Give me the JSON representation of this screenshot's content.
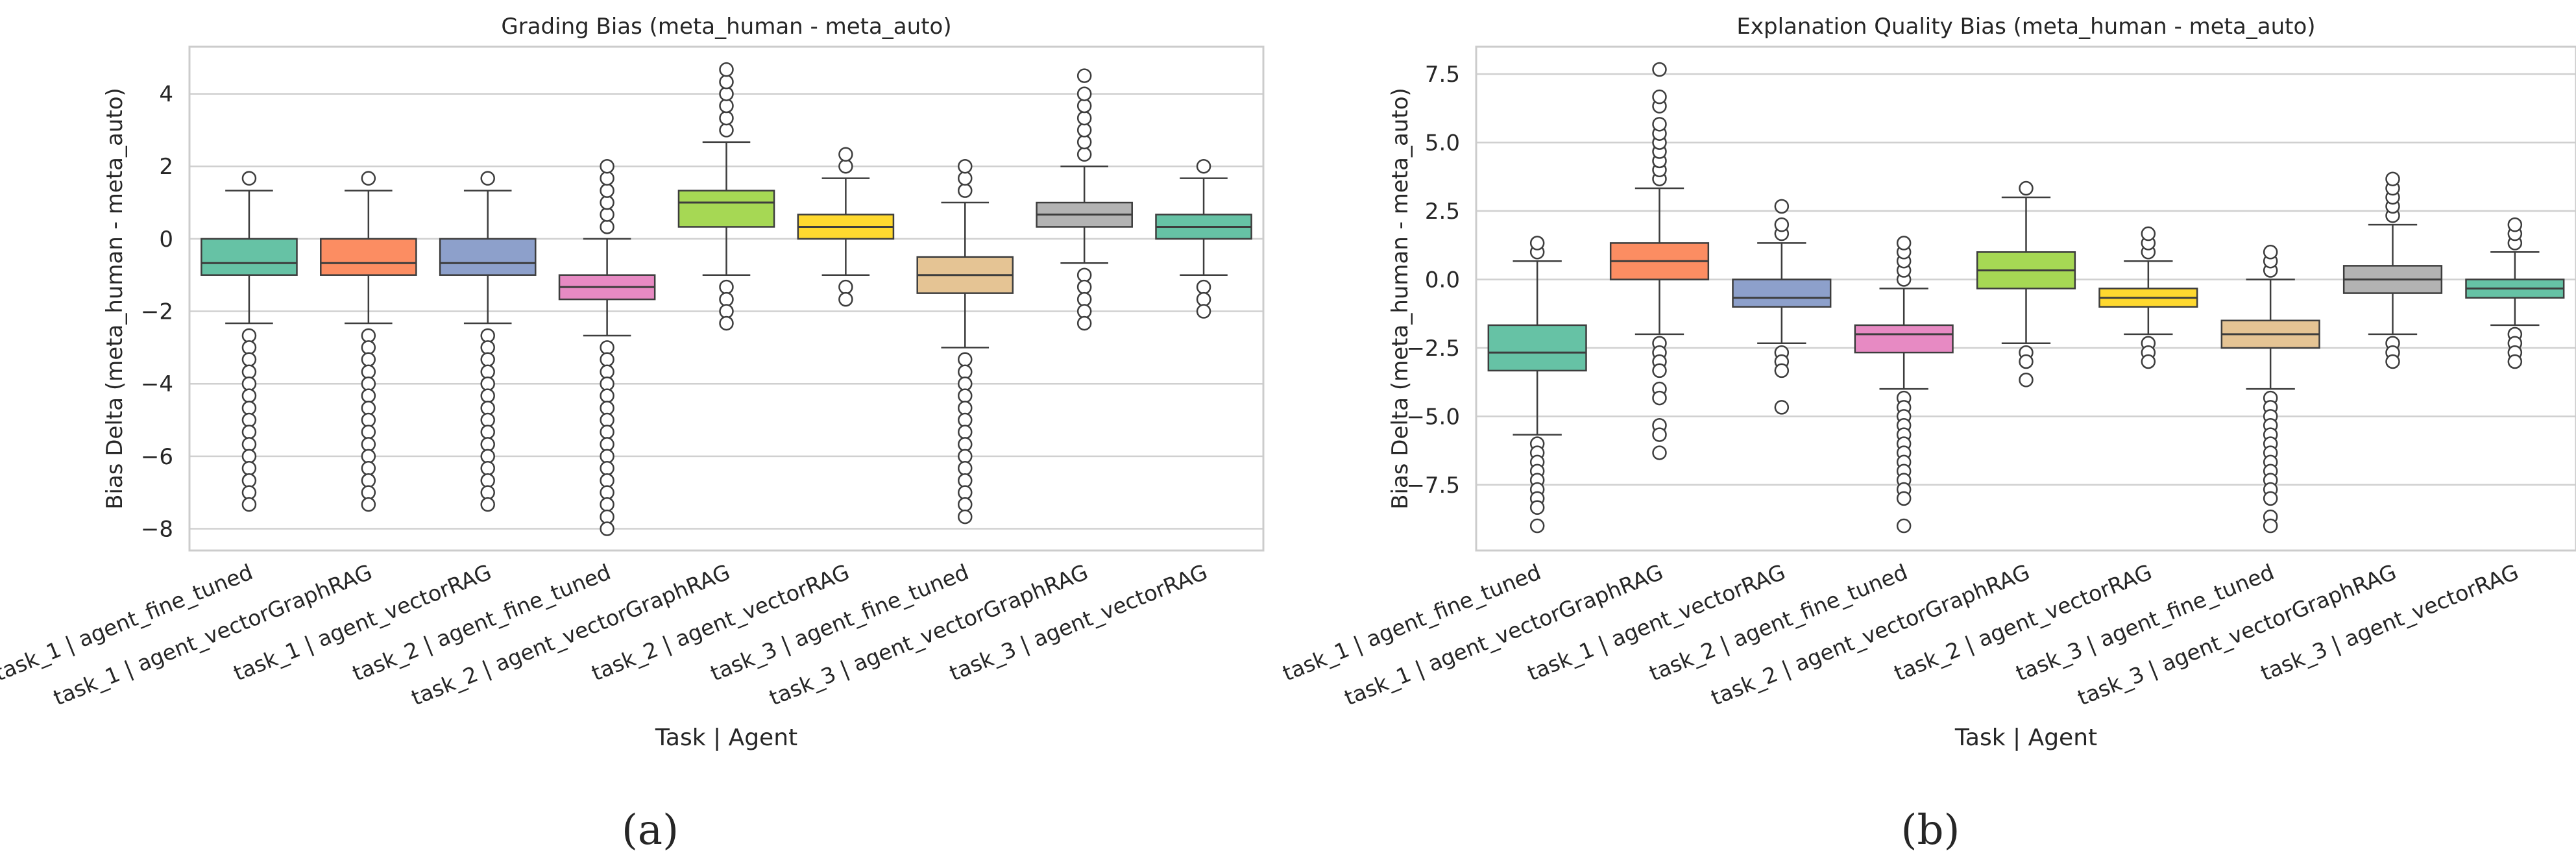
{
  "chart_data": [
    {
      "id": "a",
      "type": "box",
      "caption": "(a)",
      "title": "Grading Bias (meta_human - meta_auto)",
      "xlabel": "Task | Agent",
      "ylabel": "Bias Delta (meta_human - meta_auto)",
      "ylim": [
        -8.6,
        5.3
      ],
      "yticks": [
        4,
        2,
        0,
        -2,
        -4,
        -6,
        -8
      ],
      "grid": true,
      "categories": [
        "task_1 | agent_fine_tuned",
        "task_1 | agent_vectorGraphRAG",
        "task_1 | agent_vectorRAG",
        "task_2 | agent_fine_tuned",
        "task_2 | agent_vectorGraphRAG",
        "task_2 | agent_vectorRAG",
        "task_3 | agent_fine_tuned",
        "task_3 | agent_vectorGraphRAG",
        "task_3 | agent_vectorRAG"
      ],
      "colors": [
        "#66c2a5",
        "#fc8d62",
        "#8da0cb",
        "#e78ac3",
        "#a6d854",
        "#ffd92f",
        "#e5c494",
        "#b3b3b3",
        "#66c2a5"
      ],
      "boxes": [
        {
          "whislo": -2.33,
          "q1": -1.0,
          "med": -0.67,
          "q3": 0.0,
          "whishi": 1.33,
          "fliers": [
            1.67,
            -2.67,
            -3.0,
            -3.33,
            -3.67,
            -4.0,
            -4.33,
            -4.67,
            -5.0,
            -5.33,
            -5.67,
            -6.0,
            -6.33,
            -6.67,
            -7.0,
            -7.33
          ]
        },
        {
          "whislo": -2.33,
          "q1": -1.0,
          "med": -0.67,
          "q3": 0.0,
          "whishi": 1.33,
          "fliers": [
            1.67,
            -2.67,
            -3.0,
            -3.33,
            -3.67,
            -4.0,
            -4.33,
            -4.67,
            -5.0,
            -5.33,
            -5.67,
            -6.0,
            -6.33,
            -6.67,
            -7.0,
            -7.33
          ]
        },
        {
          "whislo": -2.33,
          "q1": -1.0,
          "med": -0.67,
          "q3": 0.0,
          "whishi": 1.33,
          "fliers": [
            1.67,
            -2.67,
            -3.0,
            -3.33,
            -3.67,
            -4.0,
            -4.33,
            -4.67,
            -5.0,
            -5.33,
            -5.67,
            -6.0,
            -6.33,
            -6.67,
            -7.0,
            -7.33
          ]
        },
        {
          "whislo": -2.67,
          "q1": -1.67,
          "med": -1.33,
          "q3": -1.0,
          "whishi": 0.0,
          "fliers": [
            0.33,
            0.67,
            1.0,
            1.33,
            1.67,
            2.0,
            -3.0,
            -3.33,
            -3.67,
            -4.0,
            -4.33,
            -4.67,
            -5.0,
            -5.33,
            -5.67,
            -6.0,
            -6.33,
            -6.67,
            -7.0,
            -7.33,
            -7.67,
            -8.0
          ]
        },
        {
          "whislo": -1.0,
          "q1": 0.33,
          "med": 1.0,
          "q3": 1.33,
          "whishi": 2.67,
          "fliers": [
            3.0,
            3.33,
            3.67,
            4.0,
            4.33,
            4.67,
            -1.33,
            -1.67,
            -2.0,
            -2.33
          ]
        },
        {
          "whislo": -1.0,
          "q1": 0.0,
          "med": 0.33,
          "q3": 0.67,
          "whishi": 1.67,
          "fliers": [
            2.0,
            2.33,
            -1.33,
            -1.67
          ]
        },
        {
          "whislo": -3.0,
          "q1": -1.5,
          "med": -1.0,
          "q3": -0.5,
          "whishi": 1.0,
          "fliers": [
            1.33,
            1.67,
            2.0,
            -3.33,
            -3.67,
            -4.0,
            -4.33,
            -4.67,
            -5.0,
            -5.33,
            -5.67,
            -6.0,
            -6.33,
            -6.67,
            -7.0,
            -7.33,
            -7.67
          ]
        },
        {
          "whislo": -0.67,
          "q1": 0.33,
          "med": 0.67,
          "q3": 1.0,
          "whishi": 2.0,
          "fliers": [
            2.33,
            2.67,
            3.0,
            3.33,
            3.67,
            4.0,
            4.5,
            -1.0,
            -1.33,
            -1.67,
            -2.0,
            -2.33
          ]
        },
        {
          "whislo": -1.0,
          "q1": 0.0,
          "med": 0.33,
          "q3": 0.67,
          "whishi": 1.67,
          "fliers": [
            2.0,
            -1.33,
            -1.67,
            -2.0
          ]
        }
      ]
    },
    {
      "id": "b",
      "type": "box",
      "caption": "(b)",
      "title": "Explanation Quality Bias (meta_human - meta_auto)",
      "xlabel": "Task | Agent",
      "ylabel": "Bias Delta (meta_human - meta_auto)",
      "ylim": [
        -9.9,
        8.5
      ],
      "yticks": [
        7.5,
        5.0,
        2.5,
        0.0,
        -2.5,
        -5.0,
        -7.5
      ],
      "grid": true,
      "categories": [
        "task_1 | agent_fine_tuned",
        "task_1 | agent_vectorGraphRAG",
        "task_1 | agent_vectorRAG",
        "task_2 | agent_fine_tuned",
        "task_2 | agent_vectorGraphRAG",
        "task_2 | agent_vectorRAG",
        "task_3 | agent_fine_tuned",
        "task_3 | agent_vectorGraphRAG",
        "task_3 | agent_vectorRAG"
      ],
      "colors": [
        "#66c2a5",
        "#fc8d62",
        "#8da0cb",
        "#e78ac3",
        "#a6d854",
        "#ffd92f",
        "#e5c494",
        "#b3b3b3",
        "#66c2a5"
      ],
      "boxes": [
        {
          "whislo": -5.67,
          "q1": -3.33,
          "med": -2.67,
          "q3": -1.67,
          "whishi": 0.67,
          "fliers": [
            1.0,
            1.33,
            -6.0,
            -6.33,
            -6.67,
            -7.0,
            -7.33,
            -7.67,
            -8.0,
            -8.33,
            -9.0
          ]
        },
        {
          "whislo": -2.0,
          "q1": 0.0,
          "med": 0.67,
          "q3": 1.33,
          "whishi": 3.33,
          "fliers": [
            3.67,
            4.0,
            4.33,
            4.67,
            5.0,
            5.33,
            5.67,
            6.33,
            6.67,
            7.67,
            -2.33,
            -2.67,
            -3.0,
            -3.33,
            -4.0,
            -4.33,
            -5.33,
            -5.67,
            -6.33
          ]
        },
        {
          "whislo": -2.33,
          "q1": -1.0,
          "med": -0.67,
          "q3": 0.0,
          "whishi": 1.33,
          "fliers": [
            1.67,
            2.0,
            2.67,
            -2.67,
            -3.0,
            -3.33,
            -4.67
          ]
        },
        {
          "whislo": -4.0,
          "q1": -2.67,
          "med": -2.0,
          "q3": -1.67,
          "whishi": -0.33,
          "fliers": [
            0.0,
            0.33,
            0.67,
            1.0,
            1.33,
            -4.33,
            -4.67,
            -5.0,
            -5.33,
            -5.67,
            -6.0,
            -6.33,
            -6.67,
            -7.0,
            -7.33,
            -7.67,
            -8.0,
            -9.0
          ]
        },
        {
          "whislo": -2.33,
          "q1": -0.33,
          "med": 0.33,
          "q3": 1.0,
          "whishi": 3.0,
          "fliers": [
            3.33,
            -2.67,
            -3.0,
            -3.67
          ]
        },
        {
          "whislo": -2.0,
          "q1": -1.0,
          "med": -0.67,
          "q3": -0.33,
          "whishi": 0.67,
          "fliers": [
            1.0,
            1.33,
            1.67,
            -2.33,
            -2.67,
            -3.0
          ]
        },
        {
          "whislo": -4.0,
          "q1": -2.5,
          "med": -2.0,
          "q3": -1.5,
          "whishi": 0.0,
          "fliers": [
            0.33,
            0.67,
            1.0,
            -4.33,
            -4.67,
            -5.0,
            -5.33,
            -5.67,
            -6.0,
            -6.33,
            -6.67,
            -7.0,
            -7.33,
            -7.67,
            -8.0,
            -8.67,
            -9.0
          ]
        },
        {
          "whislo": -2.0,
          "q1": -0.5,
          "med": 0.0,
          "q3": 0.5,
          "whishi": 2.0,
          "fliers": [
            2.33,
            2.67,
            3.0,
            3.33,
            3.67,
            -2.33,
            -2.67,
            -3.0
          ]
        },
        {
          "whislo": -1.67,
          "q1": -0.67,
          "med": -0.33,
          "q3": 0.0,
          "whishi": 1.0,
          "fliers": [
            1.33,
            1.67,
            2.0,
            -2.0,
            -2.33,
            -2.67,
            -3.0
          ]
        }
      ]
    }
  ]
}
